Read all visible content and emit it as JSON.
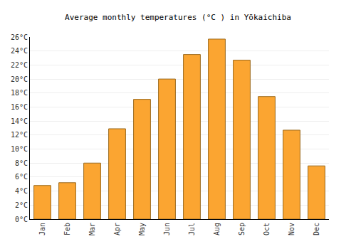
{
  "chart_data": {
    "type": "bar",
    "title": "Average monthly temperatures (°C ) in Yōkaichiba",
    "categories": [
      "Jan",
      "Feb",
      "Mar",
      "Apr",
      "May",
      "Jun",
      "Jul",
      "Aug",
      "Sep",
      "Oct",
      "Nov",
      "Dec"
    ],
    "values": [
      4.8,
      5.2,
      8.0,
      12.9,
      17.1,
      20.0,
      23.5,
      25.7,
      22.7,
      17.5,
      12.7,
      7.6
    ],
    "color": "#fba531",
    "ylim": [
      0,
      26
    ],
    "yticks": [
      {
        "value": 0,
        "label": "0°C"
      },
      {
        "value": 2,
        "label": "2°C"
      },
      {
        "value": 4,
        "label": "4°C"
      },
      {
        "value": 6,
        "label": "6°C"
      },
      {
        "value": 8,
        "label": "8°C"
      },
      {
        "value": 10,
        "label": "10°C"
      },
      {
        "value": 12,
        "label": "12°C"
      },
      {
        "value": 14,
        "label": "14°C"
      },
      {
        "value": 16,
        "label": "16°C"
      },
      {
        "value": 18,
        "label": "18°C"
      },
      {
        "value": 20,
        "label": "20°C"
      },
      {
        "value": 22,
        "label": "22°C"
      },
      {
        "value": 24,
        "label": "24°C"
      },
      {
        "value": 26,
        "label": "26°C"
      }
    ],
    "grid": true
  }
}
